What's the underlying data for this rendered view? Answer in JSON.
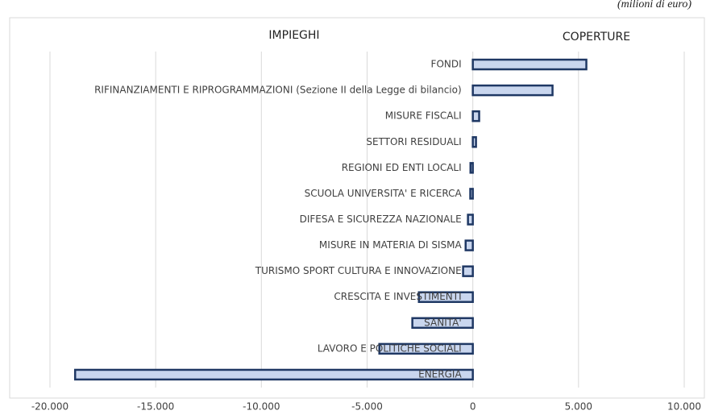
{
  "chart_data": {
    "type": "hbar",
    "unit_note": "(milioni di euro)",
    "left_header": "IMPIEGHI",
    "right_header": "COPERTURE",
    "categories": [
      "FONDI",
      "RIFINANZIAMENTI E RIPROGRAMMAZIONI (Sezione II della Legge di bilancio)",
      "MISURE FISCALI",
      "SETTORI RESIDUALI",
      "REGIONI ED ENTI LOCALI",
      "SCUOLA UNIVERSITA' E RICERCA",
      "DIFESA E SICUREZZA NAZIONALE",
      "MISURE IN MATERIA DI SISMA",
      "TURISMO SPORT CULTURA E INNOVAZIONE",
      "CRESCITA E INVESTIMENTI",
      "SANITA'",
      "LAVORO E POLITICHE SOCIALI",
      "ENERGIA"
    ],
    "values": [
      5370,
      3770,
      300,
      150,
      -110,
      -120,
      -230,
      -340,
      -460,
      -2550,
      -2860,
      -4420,
      -18810
    ],
    "color": "#c9d6ee",
    "edge_color": "#1f3864",
    "xlim": [
      -20000,
      10000
    ],
    "xticks": [
      {
        "value": -20000,
        "label": "-20.000"
      },
      {
        "value": -15000,
        "label": "-15.000"
      },
      {
        "value": -10000,
        "label": "-10.000"
      },
      {
        "value": -5000,
        "label": "-5.000"
      },
      0,
      {
        "value": 5000,
        "label": "5.000"
      },
      {
        "value": 10000,
        "label": "10.000"
      }
    ],
    "grid": true
  }
}
